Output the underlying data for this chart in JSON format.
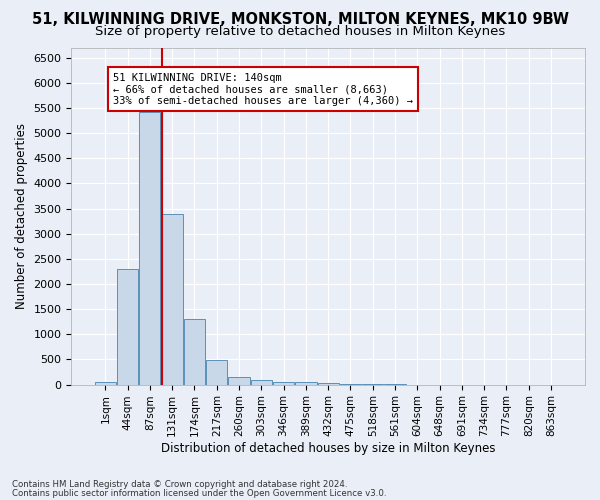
{
  "title1": "51, KILWINNING DRIVE, MONKSTON, MILTON KEYNES, MK10 9BW",
  "title2": "Size of property relative to detached houses in Milton Keynes",
  "xlabel": "Distribution of detached houses by size in Milton Keynes",
  "ylabel": "Number of detached properties",
  "bin_labels": [
    "1sqm",
    "44sqm",
    "87sqm",
    "131sqm",
    "174sqm",
    "217sqm",
    "260sqm",
    "303sqm",
    "346sqm",
    "389sqm",
    "432sqm",
    "475sqm",
    "518sqm",
    "561sqm",
    "604sqm",
    "648sqm",
    "691sqm",
    "734sqm",
    "777sqm",
    "820sqm",
    "863sqm"
  ],
  "bar_values": [
    60,
    2300,
    5420,
    3400,
    1300,
    480,
    160,
    90,
    55,
    50,
    30,
    10,
    5,
    2,
    1,
    1,
    0,
    0,
    0,
    0,
    0
  ],
  "bar_color": "#c8d8e8",
  "bar_edge_color": "#5a90b8",
  "red_line_x": 2.525,
  "red_line_color": "#cc0000",
  "annotation_text": "51 KILWINNING DRIVE: 140sqm\n← 66% of detached houses are smaller (8,663)\n33% of semi-detached houses are larger (4,360) →",
  "annotation_box_color": "white",
  "annotation_box_edge": "#cc0000",
  "ylim": [
    0,
    6700
  ],
  "yticks": [
    0,
    500,
    1000,
    1500,
    2000,
    2500,
    3000,
    3500,
    4000,
    4500,
    5000,
    5500,
    6000,
    6500
  ],
  "footnote1": "Contains HM Land Registry data © Crown copyright and database right 2024.",
  "footnote2": "Contains public sector information licensed under the Open Government Licence v3.0.",
  "bg_color": "#eaeff7",
  "plot_bg_color": "#eaeff7",
  "grid_color": "white",
  "title1_fontsize": 10.5,
  "title2_fontsize": 9.5,
  "axis_label_fontsize": 8.5,
  "tick_fontsize": 8,
  "annot_fontsize": 7.5,
  "footnote_fontsize": 6.2
}
